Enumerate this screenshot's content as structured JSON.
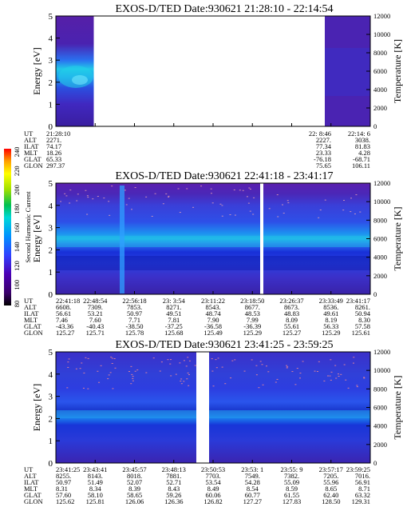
{
  "figure": {
    "colorbar": {
      "label": "Second Harmonic Current",
      "ticks": [
        "240",
        "220",
        "200",
        "180",
        "160",
        "140",
        "120",
        "100",
        "80"
      ],
      "colors": [
        "#000000",
        "#3a006a",
        "#4b00b4",
        "#3040ff",
        "#0090ff",
        "#00d8d8",
        "#00c050",
        "#a0e000",
        "#ffff00",
        "#ffa000",
        "#ff0000"
      ]
    }
  },
  "chart_data": [
    {
      "type": "heatmap",
      "title": "EXOS-D/TED   Date:930621  21:28:10 - 22:14:54",
      "ylabel": "Energy [eV]",
      "y2label": "Temperature [K]",
      "ylim": [
        0,
        5
      ],
      "y2lim": [
        0,
        12000
      ],
      "yticks": [
        "0",
        "1",
        "2",
        "3",
        "4",
        "5"
      ],
      "y2ticks": [
        "0",
        "2000",
        "4000",
        "6000",
        "8000",
        "10000",
        "12000"
      ],
      "data_segments": [
        {
          "start": "21:28:10",
          "end": "21:36:30"
        },
        {
          "start": "22:08:46",
          "end": "22:14:54"
        }
      ],
      "annotation_rows": {
        "labels": [
          "UT",
          "ALT",
          "ILAT",
          "MLT",
          "GLAT",
          "GLON"
        ],
        "left": [
          "21:28:10",
          "2271.",
          "74.17",
          "18.26",
          "65.33",
          "297.37"
        ],
        "right_cols": [
          [
            "22: 8:46",
            "2227.",
            "77.34",
            "23.33",
            "-76.18",
            "75.65"
          ],
          [
            "22:14: 6",
            "3038.",
            "81.83",
            "4.28",
            "-68.71",
            "106.11"
          ]
        ]
      }
    },
    {
      "type": "heatmap",
      "title": "EXOS-D/TED   Date:930621  22:41:18 - 23:41:17",
      "ylabel": "Energy [eV]",
      "y2label": "Temperature [K]",
      "ylim": [
        0,
        5
      ],
      "y2lim": [
        0,
        12000
      ],
      "yticks": [
        "0",
        "1",
        "2",
        "3",
        "4",
        "5"
      ],
      "y2ticks": [
        "0",
        "2000",
        "4000",
        "6000",
        "8000",
        "10000",
        "12000"
      ],
      "data_gap": {
        "start": "23:18:50",
        "end": "23:19:40"
      },
      "annotation_rows": {
        "labels": [
          "UT",
          "ALT",
          "ILAT",
          "MLT",
          "GLAT",
          "GLON"
        ],
        "columns": [
          [
            "22:41:18",
            "6608.",
            "56.61",
            "7.46",
            "-43.36",
            "125.27"
          ],
          [
            "22:48:54",
            "7309.",
            "53.21",
            "7.60",
            "-40.43",
            "125.71"
          ],
          [
            "22:56:18",
            "7853.",
            "50.97",
            "7.71",
            "-38.50",
            "125.78"
          ],
          [
            "23: 3:54",
            "8271.",
            "49.51",
            "7.81",
            "-37.25",
            "125.68"
          ],
          [
            "23:11:22",
            "8543.",
            "48.74",
            "7.90",
            "-36.58",
            "125.49"
          ],
          [
            "23:18:50",
            "8677.",
            "48.53",
            "7.99",
            "-36.39",
            "125.29"
          ],
          [
            "23:26:37",
            "8673.",
            "48.83",
            "8.09",
            "55.61",
            "125.27"
          ],
          [
            "23:33:49",
            "8536.",
            "49.61",
            "8.19",
            "56.33",
            "125.29"
          ],
          [
            "23:41:17",
            "8261.",
            "50.94",
            "8.30",
            "57.58",
            "125.61"
          ]
        ]
      }
    },
    {
      "type": "heatmap",
      "title": "EXOS-D/TED   Date:930621  23:41:25 - 23:59:25",
      "ylabel": "Energy [eV]",
      "y2label": "Temperature [K]",
      "ylim": [
        0,
        5
      ],
      "y2lim": [
        0,
        12000
      ],
      "yticks": [
        "0",
        "1",
        "2",
        "3",
        "4",
        "5"
      ],
      "y2ticks": [
        "0",
        "2000",
        "4000",
        "6000",
        "8000",
        "10000",
        "12000"
      ],
      "data_gap": {
        "start": "23:49:10",
        "end": "23:50:40"
      },
      "annotation_rows": {
        "labels": [
          "UT",
          "ALT",
          "ILAT",
          "MLT",
          "GLAT",
          "GLON"
        ],
        "columns": [
          [
            "23:41:25",
            "8255.",
            "50.97",
            "8.31",
            "57.60",
            "125.62"
          ],
          [
            "23:43:41",
            "8143.",
            "51.49",
            "8.34",
            "58.10",
            "125.81"
          ],
          [
            "23:45:57",
            "8018.",
            "52.07",
            "8.39",
            "58.65",
            "126.06"
          ],
          [
            "23:48:13",
            "7881.",
            "52.71",
            "8.43",
            "59.26",
            "126.36"
          ],
          [
            "23:50:53",
            "7703.",
            "53.54",
            "8.49",
            "60.06",
            "126.82"
          ],
          [
            "23:53: 1",
            "7549.",
            "54.28",
            "8.54",
            "60.77",
            "127.27"
          ],
          [
            "23:55: 9",
            "7382.",
            "55.09",
            "8.59",
            "61.55",
            "127.83"
          ],
          [
            "23:57:17",
            "7205.",
            "55.96",
            "8.65",
            "62.40",
            "128.50"
          ],
          [
            "23:59:25",
            "7016.",
            "56.91",
            "8.71",
            "63.32",
            "129.31"
          ]
        ]
      }
    }
  ]
}
